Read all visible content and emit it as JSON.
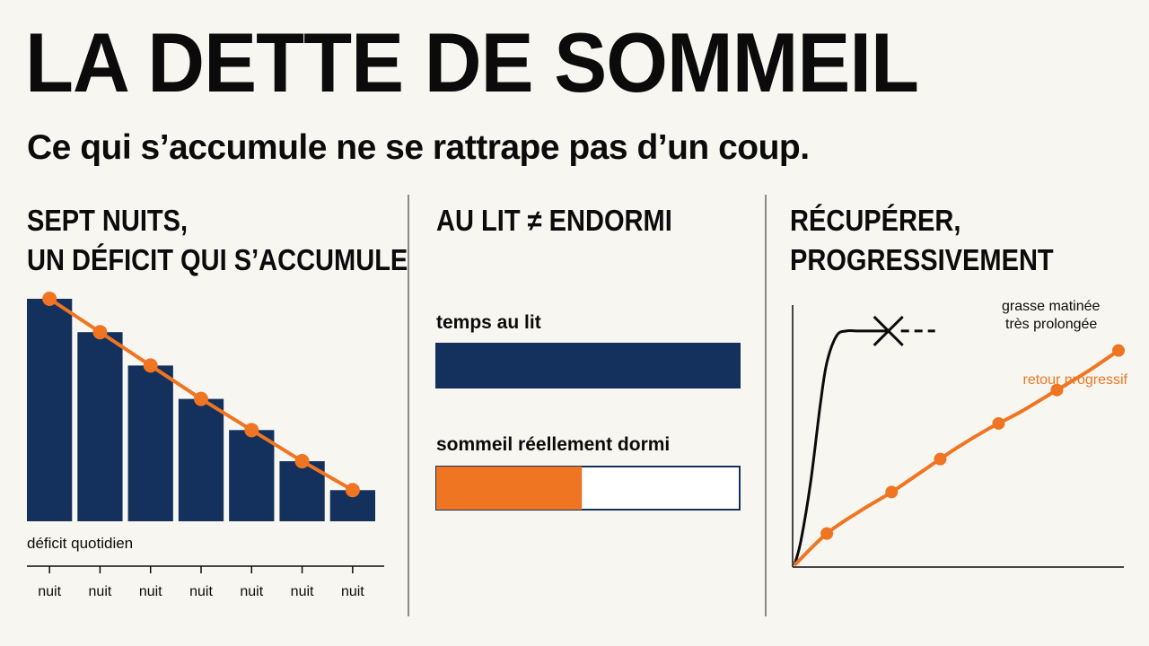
{
  "title": "LA DETTE DE SOMMEIL",
  "subtitle": "Ce qui s’accumule ne se rattrape pas d’un coup.",
  "colors": {
    "navy": "#13315c",
    "orange": "#f07522",
    "ink": "#0b0b0b",
    "background": "#f8f6f1"
  },
  "panels": [
    {
      "title_line1": "SEPT NUITS,",
      "title_line2": "UN DÉFICIT QUI S’ACCUMULE"
    },
    {
      "title_line1": "AU LIT ≠ ENDORMI"
    },
    {
      "title_line1": "RÉCUPÉRER,",
      "title_line2": "PROGRESSIVEMENT"
    }
  ],
  "chart_data": [
    {
      "type": "bar",
      "categories": [
        "nuit",
        "nuit",
        "nuit",
        "nuit",
        "nuit",
        "nuit",
        "nuit"
      ],
      "values": [
        100,
        85,
        70,
        55,
        41,
        27,
        14
      ],
      "line_values": [
        100,
        85,
        70,
        55,
        41,
        27,
        14
      ],
      "ylim": [
        0,
        100
      ],
      "xlabel": "",
      "ylabel": "",
      "annotation": "déficit quotidien"
    },
    {
      "type": "bar",
      "orientation": "horizontal",
      "categories": [
        "temps au lit",
        "sommeil réellement dormi"
      ],
      "values": [
        100,
        48
      ],
      "xlim": [
        0,
        100
      ]
    },
    {
      "type": "line",
      "series": [
        {
          "name": "grasse matinée très prolongée",
          "label_line1": "grasse matinée",
          "label_line2": "très prolongée",
          "x": [
            0,
            2,
            5,
            8,
            10,
            13,
            16,
            20,
            29
          ],
          "y": [
            0,
            10,
            34,
            66,
            83,
            94,
            96,
            96,
            96
          ]
        },
        {
          "name": "retour progressif",
          "x": [
            0,
            10,
            20,
            30,
            40,
            50,
            60,
            70,
            80,
            90,
            100
          ],
          "y": [
            0,
            13,
            22,
            30,
            39,
            48,
            56,
            63,
            71,
            79,
            88
          ]
        }
      ],
      "markers": [
        10,
        30,
        45,
        63,
        81,
        100
      ],
      "xlim": [
        0,
        100
      ],
      "ylim": [
        0,
        100
      ]
    }
  ]
}
